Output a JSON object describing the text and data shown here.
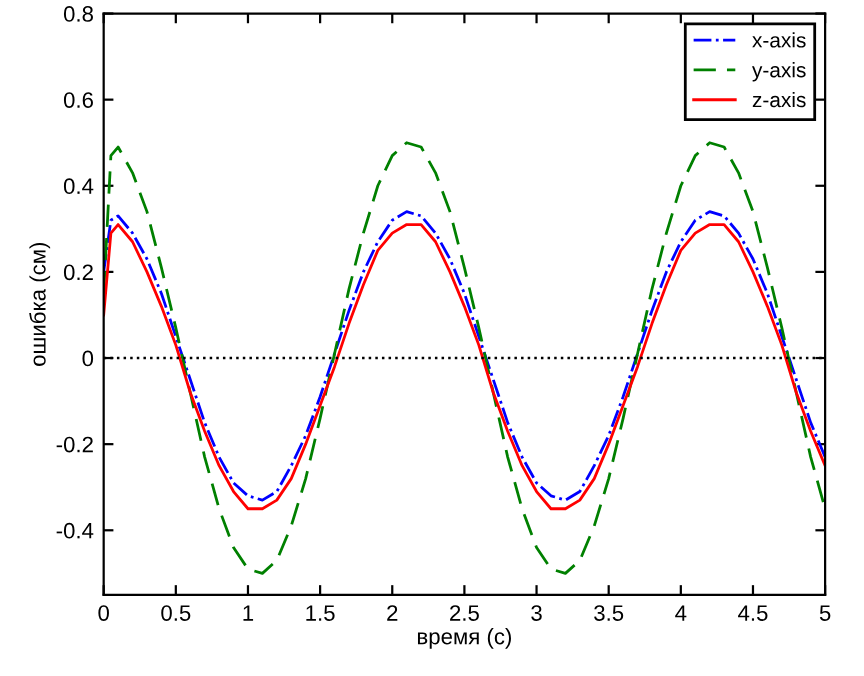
{
  "chart_data": {
    "type": "line",
    "xlabel": "время (с)",
    "ylabel": "ошибка (см)",
    "x": [
      0,
      0.05,
      0.1,
      0.2,
      0.3,
      0.4,
      0.5,
      0.6,
      0.7,
      0.8,
      0.9,
      1.0,
      1.1,
      1.2,
      1.3,
      1.4,
      1.5,
      1.6,
      1.7,
      1.8,
      1.9,
      2.0,
      2.1,
      2.2,
      2.3,
      2.4,
      2.5,
      2.6,
      2.7,
      2.8,
      2.9,
      3.0,
      3.1,
      3.2,
      3.3,
      3.4,
      3.5,
      3.6,
      3.7,
      3.8,
      3.9,
      4.0,
      4.1,
      4.2,
      4.3,
      4.4,
      4.5,
      4.6,
      4.7,
      4.8,
      4.9,
      5.0
    ],
    "series": [
      {
        "name": "x-axis",
        "color": "#0000ff",
        "line_style": "dashdot",
        "values": [
          0.2,
          0.32,
          0.33,
          0.29,
          0.23,
          0.15,
          0.05,
          -0.05,
          -0.15,
          -0.23,
          -0.29,
          -0.32,
          -0.33,
          -0.31,
          -0.25,
          -0.18,
          -0.09,
          0.01,
          0.11,
          0.2,
          0.27,
          0.32,
          0.34,
          0.33,
          0.29,
          0.23,
          0.15,
          0.05,
          -0.05,
          -0.15,
          -0.23,
          -0.29,
          -0.32,
          -0.33,
          -0.31,
          -0.25,
          -0.18,
          -0.09,
          0.01,
          0.11,
          0.2,
          0.27,
          0.32,
          0.34,
          0.33,
          0.29,
          0.23,
          0.15,
          0.05,
          -0.05,
          -0.15,
          -0.23
        ]
      },
      {
        "name": "y-axis",
        "color": "#008000",
        "line_style": "dashed",
        "values": [
          0.15,
          0.47,
          0.49,
          0.43,
          0.34,
          0.21,
          0.07,
          -0.08,
          -0.23,
          -0.35,
          -0.44,
          -0.49,
          -0.5,
          -0.47,
          -0.39,
          -0.28,
          -0.14,
          0.01,
          0.16,
          0.29,
          0.4,
          0.47,
          0.5,
          0.49,
          0.43,
          0.34,
          0.21,
          0.07,
          -0.08,
          -0.23,
          -0.35,
          -0.44,
          -0.49,
          -0.5,
          -0.47,
          -0.39,
          -0.28,
          -0.14,
          0.01,
          0.16,
          0.29,
          0.4,
          0.47,
          0.5,
          0.49,
          0.43,
          0.34,
          0.21,
          0.07,
          -0.08,
          -0.23,
          -0.35
        ]
      },
      {
        "name": "z-axis",
        "color": "#ff0000",
        "line_style": "solid",
        "values": [
          0.1,
          0.29,
          0.31,
          0.27,
          0.2,
          0.12,
          0.03,
          -0.08,
          -0.17,
          -0.25,
          -0.31,
          -0.35,
          -0.35,
          -0.33,
          -0.28,
          -0.2,
          -0.11,
          -0.02,
          0.08,
          0.17,
          0.25,
          0.29,
          0.31,
          0.31,
          0.27,
          0.2,
          0.12,
          0.03,
          -0.08,
          -0.17,
          -0.25,
          -0.31,
          -0.35,
          -0.35,
          -0.33,
          -0.28,
          -0.2,
          -0.11,
          -0.02,
          0.08,
          0.17,
          0.25,
          0.29,
          0.31,
          0.31,
          0.27,
          0.2,
          0.12,
          0.03,
          -0.08,
          -0.17,
          -0.25
        ]
      }
    ],
    "xlim": [
      0,
      5
    ],
    "xticks": [
      0,
      0.5,
      1,
      1.5,
      2,
      2.5,
      3,
      3.5,
      4,
      4.5,
      5
    ],
    "ylim": [
      -0.55,
      0.8
    ],
    "yticks": [
      -0.4,
      -0.2,
      0,
      0.2,
      0.4,
      0.6,
      0.8
    ],
    "ref_lines": [
      {
        "axis": "y",
        "value": 0,
        "color": "#000000",
        "line_style": "dotted"
      }
    ],
    "grid": false,
    "legend": "top right"
  }
}
